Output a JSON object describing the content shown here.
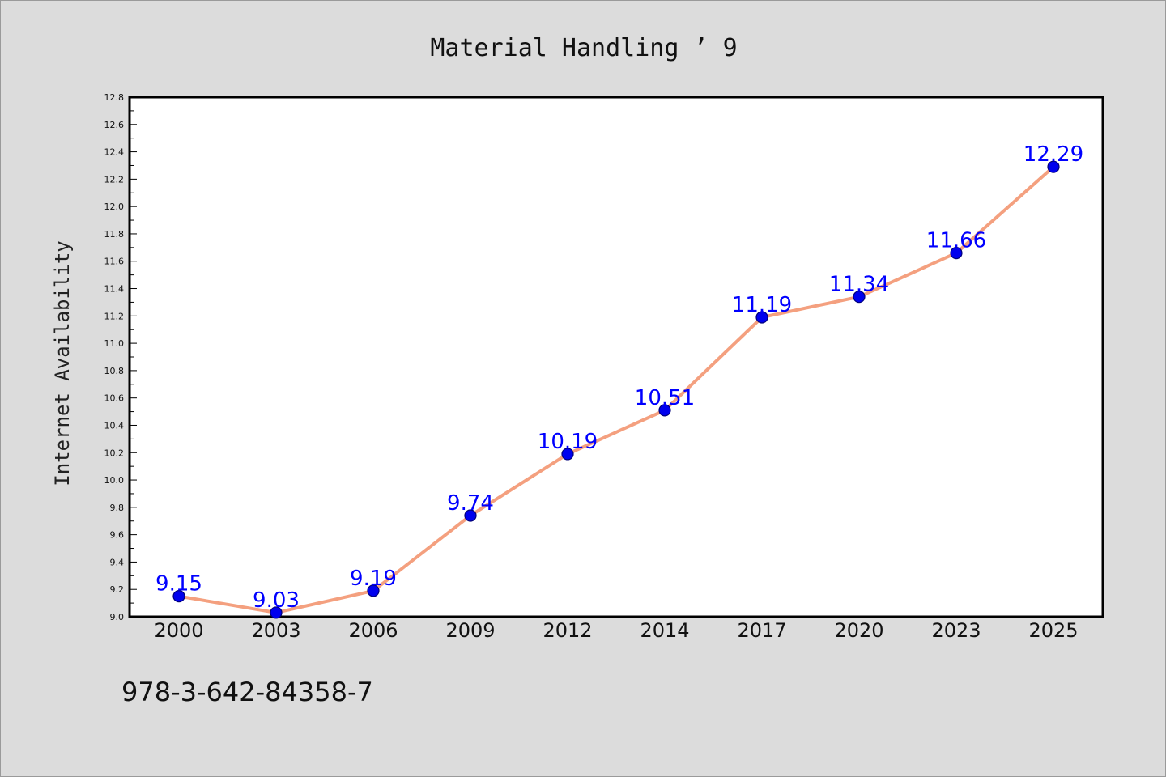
{
  "chart_data": {
    "type": "line",
    "title": "Material Handling ’ 9",
    "xlabel": "",
    "ylabel": "Internet Availability",
    "categories": [
      "2000",
      "2003",
      "2006",
      "2009",
      "2012",
      "2014",
      "2017",
      "2020",
      "2023",
      "2025"
    ],
    "series": [
      {
        "values": [
          9.15,
          9.03,
          9.19,
          9.74,
          10.19,
          10.51,
          11.19,
          11.34,
          11.66,
          12.29
        ]
      }
    ],
    "data_labels": [
      "9.15",
      "9.03",
      "9.19",
      "9.74",
      "10.19",
      "10.51",
      "11.19",
      "11.34",
      "11.66",
      "12.29"
    ],
    "ylim": [
      9.0,
      12.8
    ],
    "yticks": [
      "9.0",
      "9.2",
      "9.4",
      "9.6",
      "9.8",
      "10.0",
      "10.2",
      "10.4",
      "10.6",
      "10.8",
      "11.0",
      "11.2",
      "11.4",
      "11.6",
      "11.8",
      "12.0",
      "12.2",
      "12.4",
      "12.6",
      "12.8"
    ],
    "grid": false,
    "legend": "none",
    "colors": {
      "line": "#f4a07f",
      "marker": "#0000ee",
      "marker_edge": "#00007a",
      "label": "#0000ff"
    }
  },
  "footnote": "978-3-642-84358-7"
}
